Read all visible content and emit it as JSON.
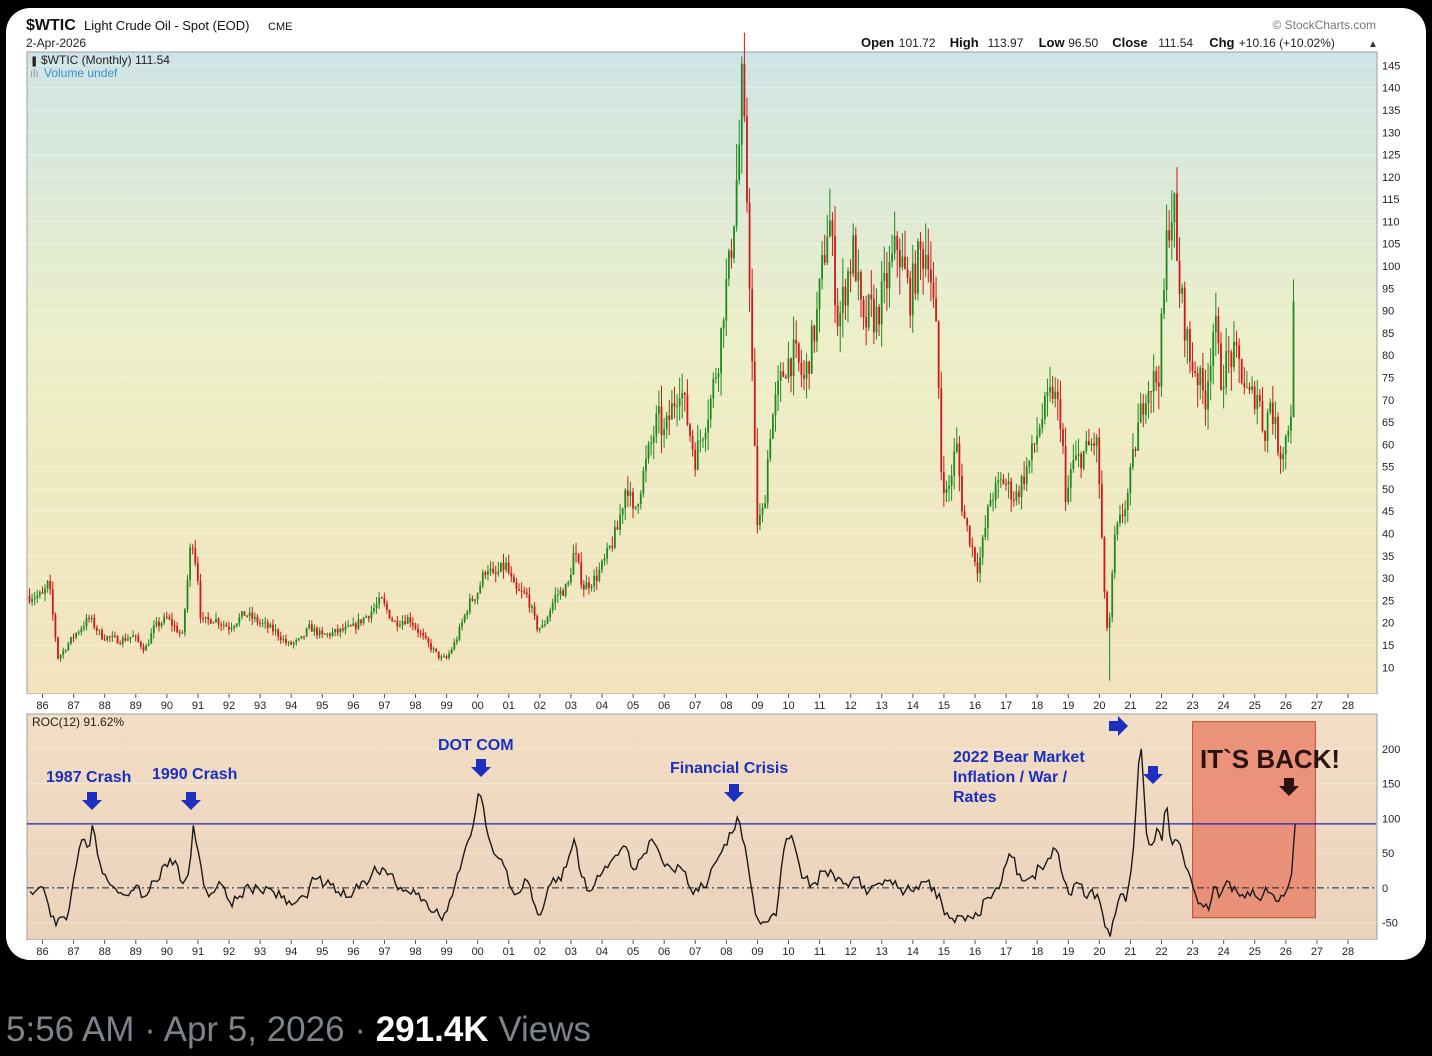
{
  "header": {
    "symbol": "$WTIC",
    "name": "Light Crude Oil - Spot (EOD)",
    "exchange": "CME",
    "date": "2-Apr-2026",
    "watermark": "© StockCharts.com",
    "ohlc": [
      {
        "label": "Open",
        "value": "101.72"
      },
      {
        "label": "High",
        "value": "113.97"
      },
      {
        "label": "Low",
        "value": "96.50"
      },
      {
        "label": "Close",
        "value": "111.54"
      },
      {
        "label": "Chg",
        "value": "+10.16 (+10.02%)"
      }
    ],
    "legend_main": "$WTIC (Monthly) 111.54",
    "legend_volume": "Volume undef",
    "legend_roc": "ROC(12) 91.62%"
  },
  "annotations": {
    "crash1987": "1987 Crash",
    "crash1990": "1990 Crash",
    "dotcom": "DOT COM",
    "financial": "Financial Crisis",
    "bear2022_l1": "2022 Bear Market",
    "bear2022_l2": "Inflation / War /",
    "bear2022_l3": "Rates",
    "back": "IT`S BACK!"
  },
  "footer": {
    "time": "5:56 AM",
    "date": "Apr 5, 2026",
    "views_count": "291.4K",
    "views_label": "Views",
    "separator": "·"
  },
  "colors": {
    "up": "#1f8a1f",
    "down": "#d01818",
    "roc_line": "#1a1a1a",
    "reference_line": "#2222bb",
    "annotation": "#1c2fc0",
    "highlight": "#e8765e"
  },
  "chart_data": [
    {
      "type": "candlestick",
      "title": "$WTIC (Monthly) 111.54",
      "x_tick_labels": [
        "86",
        "87",
        "88",
        "89",
        "90",
        "91",
        "92",
        "93",
        "94",
        "95",
        "96",
        "97",
        "98",
        "99",
        "00",
        "01",
        "02",
        "03",
        "04",
        "05",
        "06",
        "07",
        "08",
        "09",
        "10",
        "11",
        "12",
        "13",
        "14",
        "15",
        "16",
        "17",
        "18",
        "19",
        "20",
        "21",
        "22",
        "23",
        "24",
        "25",
        "26",
        "27",
        "28"
      ],
      "x_range": [
        1985.5,
        2028.9
      ],
      "y_ticks": [
        10,
        15,
        20,
        25,
        30,
        35,
        40,
        45,
        50,
        55,
        60,
        65,
        70,
        75,
        80,
        85,
        90,
        95,
        100,
        105,
        110,
        115,
        120,
        125,
        130,
        135,
        140,
        145
      ],
      "ylim": [
        4,
        148
      ],
      "series_close_points": [
        [
          1986.0,
          26
        ],
        [
          1986.2,
          29
        ],
        [
          1986.5,
          12
        ],
        [
          1986.8,
          15
        ],
        [
          1987.0,
          17
        ],
        [
          1987.5,
          21
        ],
        [
          1987.9,
          17
        ],
        [
          1988.5,
          16
        ],
        [
          1988.9,
          17
        ],
        [
          1989.3,
          14
        ],
        [
          1989.6,
          19
        ],
        [
          1990.0,
          21
        ],
        [
          1990.5,
          17
        ],
        [
          1990.8,
          40
        ],
        [
          1991.0,
          30
        ],
        [
          1991.1,
          20
        ],
        [
          1991.5,
          21
        ],
        [
          1992.0,
          19
        ],
        [
          1992.5,
          22
        ],
        [
          1993.0,
          20
        ],
        [
          1993.5,
          18
        ],
        [
          1993.9,
          15
        ],
        [
          1994.3,
          16
        ],
        [
          1994.6,
          19
        ],
        [
          1995.0,
          17
        ],
        [
          1995.5,
          18
        ],
        [
          1996.0,
          19
        ],
        [
          1996.5,
          22
        ],
        [
          1996.9,
          25
        ],
        [
          1997.3,
          20
        ],
        [
          1997.8,
          21
        ],
        [
          1998.3,
          16
        ],
        [
          1998.8,
          12
        ],
        [
          1999.0,
          12
        ],
        [
          1999.3,
          16
        ],
        [
          1999.7,
          24
        ],
        [
          2000.0,
          27
        ],
        [
          2000.3,
          33
        ],
        [
          2000.5,
          30
        ],
        [
          2000.9,
          33
        ],
        [
          2001.2,
          27
        ],
        [
          2001.6,
          26
        ],
        [
          2001.9,
          19
        ],
        [
          2002.1,
          19
        ],
        [
          2002.5,
          26
        ],
        [
          2002.9,
          28
        ],
        [
          2003.1,
          36
        ],
        [
          2003.4,
          28
        ],
        [
          2003.8,
          30
        ],
        [
          2004.1,
          34
        ],
        [
          2004.5,
          41
        ],
        [
          2004.8,
          52
        ],
        [
          2005.0,
          44
        ],
        [
          2005.5,
          58
        ],
        [
          2005.8,
          66
        ],
        [
          2006.0,
          62
        ],
        [
          2006.5,
          74
        ],
        [
          2006.9,
          60
        ],
        [
          2007.0,
          57
        ],
        [
          2007.5,
          70
        ],
        [
          2007.8,
          82
        ],
        [
          2007.9,
          91
        ],
        [
          2008.1,
          100
        ],
        [
          2008.4,
          125
        ],
        [
          2008.5,
          140
        ],
        [
          2008.7,
          110
        ],
        [
          2008.9,
          60
        ],
        [
          2009.0,
          42
        ],
        [
          2009.2,
          45
        ],
        [
          2009.4,
          63
        ],
        [
          2009.6,
          70
        ],
        [
          2009.9,
          78
        ],
        [
          2010.2,
          80
        ],
        [
          2010.5,
          74
        ],
        [
          2010.9,
          88
        ],
        [
          2011.2,
          106
        ],
        [
          2011.3,
          112
        ],
        [
          2011.6,
          87
        ],
        [
          2011.9,
          98
        ],
        [
          2012.1,
          104
        ],
        [
          2012.4,
          85
        ],
        [
          2012.6,
          90
        ],
        [
          2012.8,
          88
        ],
        [
          2013.1,
          95
        ],
        [
          2013.5,
          105
        ],
        [
          2013.9,
          93
        ],
        [
          2014.2,
          102
        ],
        [
          2014.5,
          104
        ],
        [
          2014.8,
          80
        ],
        [
          2014.9,
          55
        ],
        [
          2015.1,
          48
        ],
        [
          2015.4,
          60
        ],
        [
          2015.6,
          45
        ],
        [
          2015.9,
          37
        ],
        [
          2016.1,
          32
        ],
        [
          2016.5,
          48
        ],
        [
          2016.9,
          52
        ],
        [
          2017.3,
          48
        ],
        [
          2017.8,
          57
        ],
        [
          2018.1,
          65
        ],
        [
          2018.5,
          72
        ],
        [
          2018.8,
          65
        ],
        [
          2018.9,
          45
        ],
        [
          2019.1,
          55
        ],
        [
          2019.5,
          58
        ],
        [
          2019.9,
          61
        ],
        [
          2020.0,
          51
        ],
        [
          2020.2,
          20
        ],
        [
          2020.3,
          18
        ],
        [
          2020.5,
          39
        ],
        [
          2020.9,
          48
        ],
        [
          2021.2,
          62
        ],
        [
          2021.5,
          73
        ],
        [
          2021.9,
          75
        ],
        [
          2022.1,
          96
        ],
        [
          2022.2,
          110
        ],
        [
          2022.4,
          114
        ],
        [
          2022.5,
          99
        ],
        [
          2022.8,
          85
        ],
        [
          2022.9,
          79
        ],
        [
          2023.1,
          77
        ],
        [
          2023.4,
          70
        ],
        [
          2023.7,
          88
        ],
        [
          2023.9,
          75
        ],
        [
          2024.2,
          80
        ],
        [
          2024.5,
          78
        ],
        [
          2024.8,
          70
        ],
        [
          2025.1,
          72
        ],
        [
          2025.3,
          62
        ],
        [
          2025.5,
          70
        ],
        [
          2025.8,
          58
        ],
        [
          2025.95,
          60
        ],
        [
          2026.1,
          65
        ],
        [
          2026.2,
          70
        ],
        [
          2026.3,
          111.54
        ]
      ],
      "peak_labels": {
        "2008_high": 147,
        "2020_low": 7
      }
    },
    {
      "type": "line",
      "title": "ROC(12) 91.62%",
      "x_range": [
        1985.5,
        2028.9
      ],
      "y_ticks": [
        -50,
        0,
        50,
        100,
        150,
        200
      ],
      "ylim": [
        -75,
        250
      ],
      "reference_line": 92,
      "zero_line": 0,
      "points": [
        [
          1985.6,
          -5
        ],
        [
          1985.9,
          5
        ],
        [
          1986.2,
          -25
        ],
        [
          1986.4,
          -55
        ],
        [
          1986.8,
          -45
        ],
        [
          1987.1,
          35
        ],
        [
          1987.25,
          70
        ],
        [
          1987.5,
          55
        ],
        [
          1987.6,
          90
        ],
        [
          1987.8,
          40
        ],
        [
          1988.0,
          20
        ],
        [
          1988.3,
          0
        ],
        [
          1988.6,
          -10
        ],
        [
          1989.0,
          5
        ],
        [
          1989.3,
          -15
        ],
        [
          1989.6,
          10
        ],
        [
          1990.0,
          30
        ],
        [
          1990.3,
          40
        ],
        [
          1990.5,
          5
        ],
        [
          1990.7,
          20
        ],
        [
          1990.85,
          90
        ],
        [
          1991.0,
          55
        ],
        [
          1991.2,
          0
        ],
        [
          1991.4,
          -10
        ],
        [
          1991.7,
          10
        ],
        [
          1992.0,
          -20
        ],
        [
          1992.3,
          -15
        ],
        [
          1992.6,
          5
        ],
        [
          1993.0,
          -5
        ],
        [
          1993.3,
          0
        ],
        [
          1993.7,
          -15
        ],
        [
          1994.0,
          -25
        ],
        [
          1994.4,
          -15
        ],
        [
          1994.8,
          15
        ],
        [
          1995.1,
          5
        ],
        [
          1995.5,
          -5
        ],
        [
          1995.8,
          -15
        ],
        [
          1996.2,
          0
        ],
        [
          1996.6,
          20
        ],
        [
          1996.9,
          30
        ],
        [
          1997.2,
          20
        ],
        [
          1997.6,
          -5
        ],
        [
          1997.9,
          0
        ],
        [
          1998.2,
          -20
        ],
        [
          1998.6,
          -35
        ],
        [
          1998.9,
          -40
        ],
        [
          1999.2,
          -10
        ],
        [
          1999.5,
          40
        ],
        [
          1999.7,
          70
        ],
        [
          1999.9,
          100
        ],
        [
          2000.05,
          145
        ],
        [
          2000.3,
          80
        ],
        [
          2000.5,
          50
        ],
        [
          2000.8,
          40
        ],
        [
          2001.0,
          5
        ],
        [
          2001.3,
          -10
        ],
        [
          2001.6,
          10
        ],
        [
          2001.9,
          -40
        ],
        [
          2002.1,
          -30
        ],
        [
          2002.4,
          15
        ],
        [
          2002.7,
          10
        ],
        [
          2002.9,
          40
        ],
        [
          2003.1,
          70
        ],
        [
          2003.3,
          20
        ],
        [
          2003.6,
          -5
        ],
        [
          2003.9,
          15
        ],
        [
          2004.2,
          30
        ],
        [
          2004.6,
          55
        ],
        [
          2004.8,
          60
        ],
        [
          2005.0,
          25
        ],
        [
          2005.3,
          45
        ],
        [
          2005.6,
          70
        ],
        [
          2005.9,
          40
        ],
        [
          2006.2,
          30
        ],
        [
          2006.6,
          25
        ],
        [
          2006.9,
          -10
        ],
        [
          2007.1,
          -5
        ],
        [
          2007.4,
          10
        ],
        [
          2007.7,
          40
        ],
        [
          2007.9,
          60
        ],
        [
          2008.2,
          80
        ],
        [
          2008.4,
          100
        ],
        [
          2008.6,
          60
        ],
        [
          2008.8,
          0
        ],
        [
          2009.0,
          -45
        ],
        [
          2009.3,
          -50
        ],
        [
          2009.6,
          -40
        ],
        [
          2009.9,
          70
        ],
        [
          2010.1,
          75
        ],
        [
          2010.4,
          15
        ],
        [
          2010.8,
          5
        ],
        [
          2011.2,
          25
        ],
        [
          2011.5,
          10
        ],
        [
          2011.8,
          5
        ],
        [
          2012.2,
          15
        ],
        [
          2012.5,
          -10
        ],
        [
          2012.8,
          5
        ],
        [
          2013.2,
          10
        ],
        [
          2013.5,
          0
        ],
        [
          2013.9,
          -5
        ],
        [
          2014.3,
          10
        ],
        [
          2014.7,
          0
        ],
        [
          2014.9,
          -20
        ],
        [
          2015.2,
          -45
        ],
        [
          2015.5,
          -40
        ],
        [
          2015.9,
          -45
        ],
        [
          2016.1,
          -40
        ],
        [
          2016.4,
          -15
        ],
        [
          2016.8,
          0
        ],
        [
          2017.0,
          35
        ],
        [
          2017.2,
          45
        ],
        [
          2017.5,
          10
        ],
        [
          2017.8,
          15
        ],
        [
          2018.1,
          30
        ],
        [
          2018.4,
          40
        ],
        [
          2018.6,
          55
        ],
        [
          2018.8,
          20
        ],
        [
          2019.0,
          -10
        ],
        [
          2019.3,
          10
        ],
        [
          2019.6,
          -15
        ],
        [
          2019.9,
          -5
        ],
        [
          2020.05,
          -25
        ],
        [
          2020.2,
          -60
        ],
        [
          2020.35,
          -70
        ],
        [
          2020.6,
          -20
        ],
        [
          2020.9,
          -10
        ],
        [
          2021.1,
          60
        ],
        [
          2021.25,
          150
        ],
        [
          2021.3,
          240
        ],
        [
          2021.5,
          80
        ],
        [
          2021.7,
          60
        ],
        [
          2021.9,
          90
        ],
        [
          2022.0,
          60
        ],
        [
          2022.15,
          130
        ],
        [
          2022.3,
          60
        ],
        [
          2022.5,
          70
        ],
        [
          2022.7,
          45
        ],
        [
          2022.9,
          20
        ],
        [
          2023.1,
          -10
        ],
        [
          2023.3,
          -25
        ],
        [
          2023.5,
          -35
        ],
        [
          2023.7,
          5
        ],
        [
          2023.9,
          -10
        ],
        [
          2024.1,
          10
        ],
        [
          2024.4,
          -5
        ],
        [
          2024.7,
          -15
        ],
        [
          2024.9,
          0
        ],
        [
          2025.1,
          -15
        ],
        [
          2025.4,
          -5
        ],
        [
          2025.7,
          -20
        ],
        [
          2025.9,
          -15
        ],
        [
          2026.0,
          -5
        ],
        [
          2026.15,
          0
        ],
        [
          2026.3,
          91.62
        ]
      ]
    }
  ]
}
